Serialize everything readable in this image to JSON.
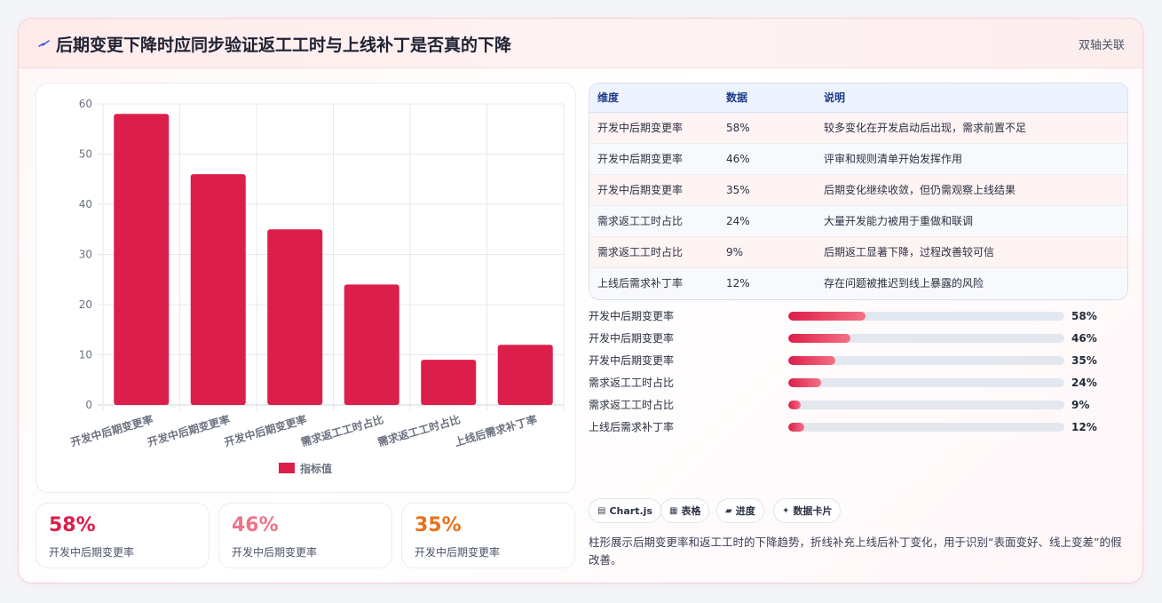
{
  "header": {
    "title": "后期变更下降时应同步验证返工工时与上线补丁是否真的下降",
    "tag": "双轴关联",
    "icon": "lightning-icon"
  },
  "chart_data": {
    "type": "bar",
    "categories": [
      "开发中后期变更率",
      "开发中后期变更率",
      "开发中后期变更率",
      "需求返工工时占比",
      "需求返工工时占比",
      "上线后需求补丁率"
    ],
    "series": [
      {
        "name": "指标值",
        "values": [
          58,
          46,
          35,
          24,
          9,
          12
        ],
        "color": "#dc1e4a"
      }
    ],
    "ylim": [
      0,
      60
    ],
    "yticks": [
      0,
      10,
      20,
      30,
      40,
      50,
      60
    ],
    "grid": true,
    "legend": "bottom"
  },
  "kpis": [
    {
      "value": "58%",
      "label": "开发中后期变更率",
      "color": "#dc1e4a"
    },
    {
      "value": "46%",
      "label": "开发中后期变更率",
      "color": "#f07489"
    },
    {
      "value": "35%",
      "label": "开发中后期变更率",
      "color": "#e8711a"
    }
  ],
  "table": {
    "headers": [
      "维度",
      "数据",
      "说明"
    ],
    "rows": [
      {
        "dim": "开发中后期变更率",
        "val": "58%",
        "note": "较多变化在开发启动后出现，需求前置不足",
        "bg": "#fff4f4"
      },
      {
        "dim": "开发中后期变更率",
        "val": "46%",
        "note": "评审和规则清单开始发挥作用",
        "bg": "#f7f9fc"
      },
      {
        "dim": "开发中后期变更率",
        "val": "35%",
        "note": "后期变化继续收敛，但仍需观察上线结果",
        "bg": "#fff4f4"
      },
      {
        "dim": "需求返工工时占比",
        "val": "24%",
        "note": "大量开发能力被用于重做和联调",
        "bg": "#f7f9fc"
      },
      {
        "dim": "需求返工工时占比",
        "val": "9%",
        "note": "后期返工显著下降，过程改善较可信",
        "bg": "#fff4f4"
      },
      {
        "dim": "上线后需求补丁率",
        "val": "12%",
        "note": "存在问题被推迟到线上暴露的风险",
        "bg": "#f7f9fc"
      }
    ]
  },
  "progress": [
    {
      "label": "开发中后期变更率",
      "value": "58%",
      "fraction": 0.28
    },
    {
      "label": "开发中后期变更率",
      "value": "46%",
      "fraction": 0.225
    },
    {
      "label": "开发中后期变更率",
      "value": "35%",
      "fraction": 0.17
    },
    {
      "label": "需求返工工时占比",
      "value": "24%",
      "fraction": 0.118
    },
    {
      "label": "需求返工工时占比",
      "value": "9%",
      "fraction": 0.045
    },
    {
      "label": "上线后需求补丁率",
      "value": "12%",
      "fraction": 0.058
    }
  ],
  "chips": [
    {
      "icon": "chart-icon",
      "glyph": "▤",
      "label": "Chart.js"
    },
    {
      "icon": "table-icon",
      "glyph": "▦",
      "label": "表格"
    },
    {
      "icon": "progress-icon",
      "glyph": "▰",
      "label": "进度"
    },
    {
      "icon": "card-icon",
      "glyph": "✦",
      "label": "数据卡片"
    }
  ],
  "description": "柱形展示后期变更率和返工工时的下降趋势，折线补充上线后补丁变化，用于识别“表面变好、线上变差”的假改善。"
}
